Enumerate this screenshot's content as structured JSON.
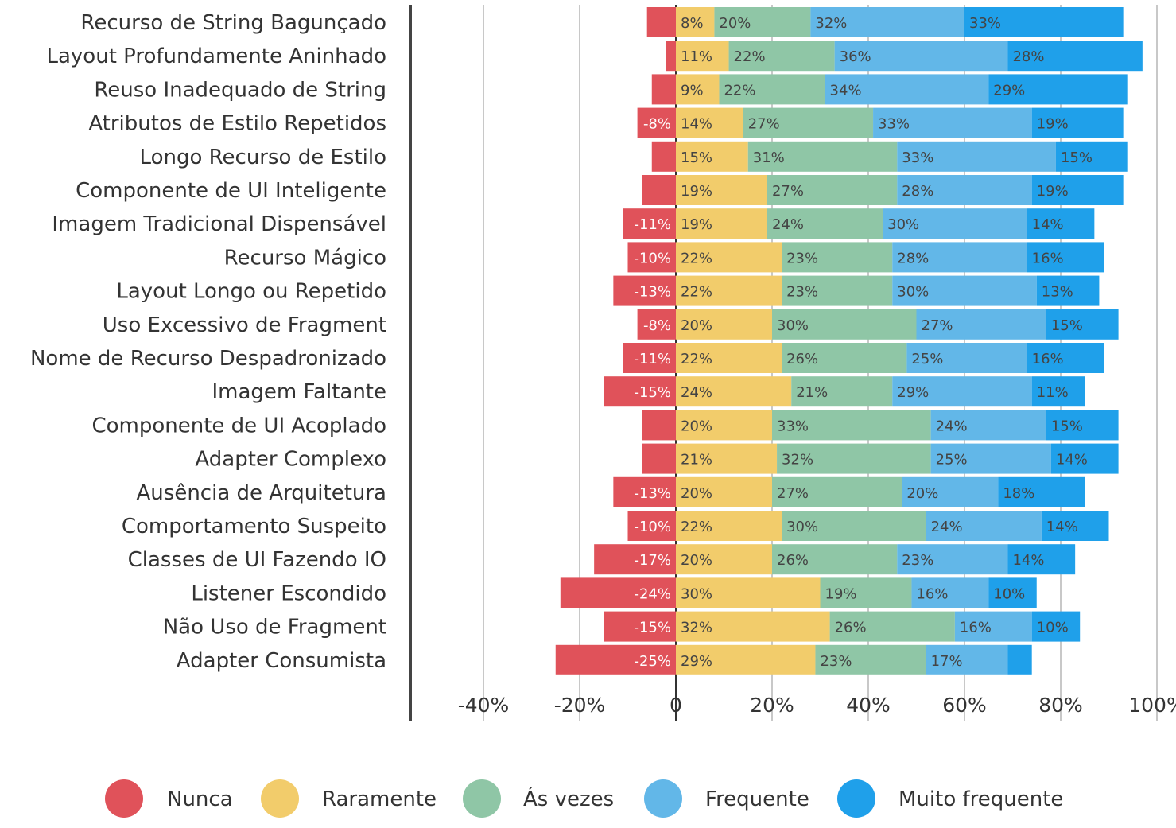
{
  "chart_data": {
    "type": "bar",
    "orientation": "horizontal",
    "stacked": "diverging",
    "categories": [
      "Recurso de String Bagunçado",
      "Layout Profundamente Aninhado",
      "Reuso Inadequado de String",
      "Atributos de Estilo Repetidos",
      "Longo Recurso de Estilo",
      "Componente de UI Inteligente",
      "Imagem Tradicional Dispensável",
      "Recurso Mágico",
      "Layout Longo ou Repetido",
      "Uso Excessivo de Fragment",
      "Nome de Recurso Despadronizado",
      "Imagem Faltante",
      "Componente de UI Acoplado",
      "Adapter Complexo",
      "Ausência de Arquitetura",
      "Comportamento Suspeito",
      "Classes de UI Fazendo IO",
      "Listener Escondido",
      "Não Uso de Fragment",
      "Adapter Consumista"
    ],
    "series": [
      {
        "name": "Nunca",
        "color": "#e0525a",
        "values": [
          -6,
          -2,
          -5,
          -8,
          -5,
          -7,
          -11,
          -10,
          -13,
          -8,
          -11,
          -15,
          -7,
          -7,
          -13,
          -10,
          -17,
          -24,
          -15,
          -25
        ],
        "labels": [
          "",
          "",
          "",
          "-8%",
          "",
          "",
          "-11%",
          "-10%",
          "-13%",
          "-8%",
          "-11%",
          "-15%",
          "",
          "",
          "-13%",
          "-10%",
          "-17%",
          "-24%",
          "-15%",
          "-25%"
        ]
      },
      {
        "name": "Raramente",
        "color": "#f2cc6b",
        "values": [
          8,
          11,
          9,
          14,
          15,
          19,
          19,
          22,
          22,
          20,
          22,
          24,
          20,
          21,
          20,
          22,
          20,
          30,
          32,
          29
        ],
        "labels": [
          "8%",
          "11%",
          "9%",
          "14%",
          "15%",
          "19%",
          "19%",
          "22%",
          "22%",
          "20%",
          "22%",
          "24%",
          "20%",
          "21%",
          "20%",
          "22%",
          "20%",
          "30%",
          "32%",
          "29%"
        ]
      },
      {
        "name": "Ás vezes",
        "color": "#8fc6a6",
        "values": [
          20,
          22,
          22,
          27,
          31,
          27,
          24,
          23,
          23,
          30,
          26,
          21,
          33,
          32,
          27,
          30,
          26,
          19,
          26,
          23
        ],
        "labels": [
          "20%",
          "22%",
          "22%",
          "27%",
          "31%",
          "27%",
          "24%",
          "23%",
          "23%",
          "30%",
          "26%",
          "21%",
          "33%",
          "32%",
          "27%",
          "30%",
          "26%",
          "19%",
          "26%",
          "23%"
        ]
      },
      {
        "name": "Frequente",
        "color": "#62b7e8",
        "values": [
          32,
          36,
          34,
          33,
          33,
          28,
          30,
          28,
          30,
          27,
          25,
          29,
          24,
          25,
          20,
          24,
          23,
          16,
          16,
          17
        ],
        "labels": [
          "32%",
          "36%",
          "34%",
          "33%",
          "33%",
          "28%",
          "30%",
          "28%",
          "30%",
          "27%",
          "25%",
          "29%",
          "24%",
          "25%",
          "20%",
          "24%",
          "23%",
          "16%",
          "16%",
          "17%"
        ]
      },
      {
        "name": "Muito frequente",
        "color": "#1fa0ea",
        "values": [
          33,
          28,
          29,
          19,
          15,
          19,
          14,
          16,
          13,
          15,
          16,
          11,
          15,
          14,
          18,
          14,
          14,
          10,
          10,
          5
        ],
        "labels": [
          "33%",
          "28%",
          "29%",
          "19%",
          "15%",
          "19%",
          "14%",
          "16%",
          "13%",
          "15%",
          "16%",
          "11%",
          "15%",
          "14%",
          "18%",
          "14%",
          "14%",
          "10%",
          "10%",
          ""
        ]
      }
    ],
    "xlim": [
      -55,
      100
    ],
    "x_ticks": [
      -40,
      -20,
      0,
      20,
      40,
      60,
      80,
      100
    ],
    "x_tick_labels": [
      "-40%",
      "-20%",
      "0",
      "20%",
      "40%",
      "60%",
      "80%",
      "100%"
    ],
    "grid": true,
    "legend_position": "bottom",
    "title": "",
    "xlabel": "",
    "ylabel": ""
  }
}
